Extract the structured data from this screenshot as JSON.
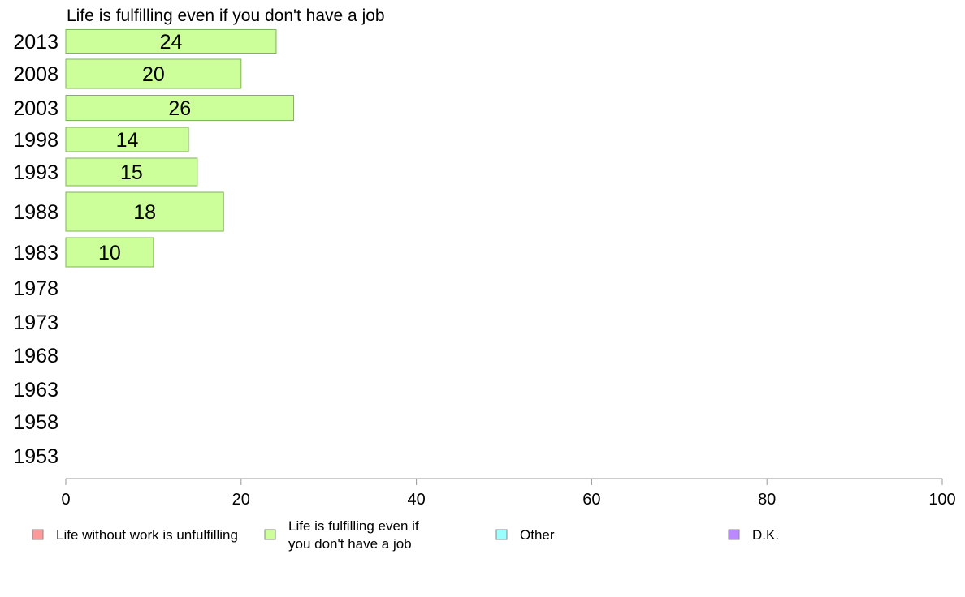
{
  "chart_data": {
    "type": "bar",
    "orientation": "horizontal",
    "title": "Life is fulfilling even if you don't have a job",
    "categories": [
      "2013",
      "2008",
      "2003",
      "1998",
      "1993",
      "1988",
      "1983",
      "1978",
      "1973",
      "1968",
      "1963",
      "1958",
      "1953"
    ],
    "series": [
      {
        "name": "Life is fulfilling even if you don't have a job",
        "color": "#ccff99",
        "values": [
          24,
          20,
          26,
          14,
          15,
          18,
          10,
          null,
          null,
          null,
          null,
          null,
          null
        ]
      }
    ],
    "xlim": [
      0,
      100
    ],
    "xticks": [
      0,
      20,
      40,
      60,
      80,
      100
    ],
    "grid": false,
    "legend": {
      "position": "bottom",
      "items": [
        {
          "lines": [
            "Life without work is unfulfilling"
          ],
          "color": "#ff9999"
        },
        {
          "lines": [
            "Life is fulfilling even if",
            "you don't have a job"
          ],
          "color": "#ccff99"
        },
        {
          "lines": [
            "Other"
          ],
          "color": "#99ffff"
        },
        {
          "lines": [
            "D.K."
          ],
          "color": "#bb88ff"
        }
      ]
    }
  }
}
